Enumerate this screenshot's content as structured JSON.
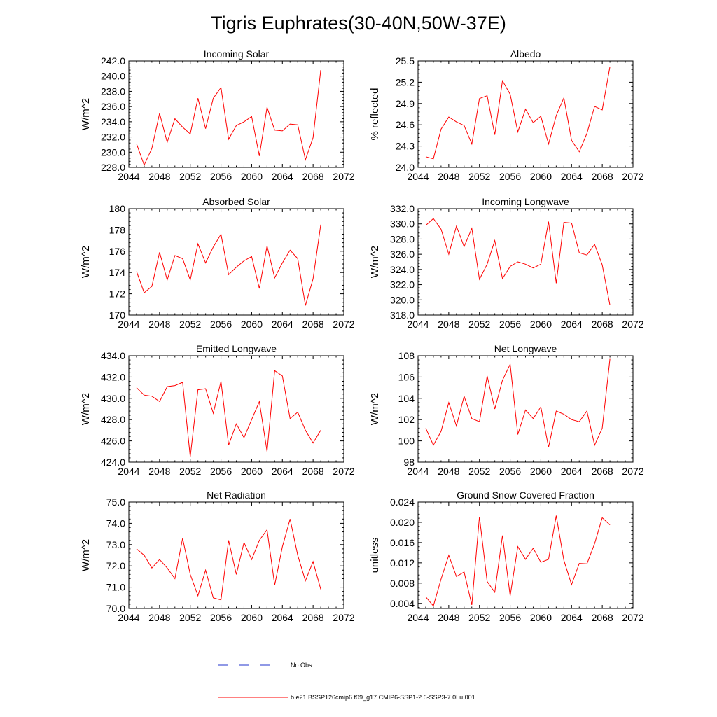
{
  "title": "Tigris Euphrates(30-40N,50W-37E)",
  "colors": {
    "series": "#ff0000",
    "obs": "#2233cc",
    "axis": "#000000"
  },
  "legend": {
    "obs_label": "No Obs",
    "model_label": "b.e21.BSSP126cmip6.f09_g17.CMIP6-SSP1-2.6-SSP3-7.0Lu.001"
  },
  "chart_data": [
    {
      "type": "line",
      "title": "Incoming Solar",
      "ylabel": "W/m^2",
      "xlim": [
        2044,
        2072
      ],
      "xticks": [
        2044,
        2048,
        2052,
        2056,
        2060,
        2064,
        2068,
        2072
      ],
      "ylim": [
        228,
        242
      ],
      "yticks": [
        "228.0",
        "230.0",
        "232.0",
        "234.0",
        "236.0",
        "238.0",
        "240.0",
        "242.0"
      ],
      "x": [
        2045,
        2046,
        2047,
        2048,
        2049,
        2050,
        2051,
        2052,
        2053,
        2054,
        2055,
        2056,
        2057,
        2058,
        2059,
        2060,
        2061,
        2062,
        2063,
        2064,
        2065,
        2066,
        2067,
        2068,
        2069
      ],
      "series": [
        {
          "values": [
            231.1,
            228.3,
            230.5,
            235.1,
            231.3,
            234.4,
            233.3,
            232.4,
            237.1,
            233.1,
            237.1,
            238.5,
            231.7,
            233.5,
            234.0,
            234.7,
            229.5,
            235.9,
            232.9,
            232.8,
            233.7,
            233.6,
            229.0,
            231.9,
            240.8
          ]
        }
      ]
    },
    {
      "type": "line",
      "title": "Albedo",
      "ylabel": "% reflected",
      "xlim": [
        2044,
        2072
      ],
      "xticks": [
        2044,
        2048,
        2052,
        2056,
        2060,
        2064,
        2068,
        2072
      ],
      "ylim": [
        24.0,
        25.5
      ],
      "yticks": [
        "24.0",
        "24.3",
        "24.6",
        "24.9",
        "25.2",
        "25.5"
      ],
      "x": [
        2045,
        2046,
        2047,
        2048,
        2049,
        2050,
        2051,
        2052,
        2053,
        2054,
        2055,
        2056,
        2057,
        2058,
        2059,
        2060,
        2061,
        2062,
        2063,
        2064,
        2065,
        2066,
        2067,
        2068,
        2069
      ],
      "series": [
        {
          "values": [
            24.15,
            24.12,
            24.54,
            24.71,
            24.64,
            24.59,
            24.33,
            24.97,
            25.01,
            24.46,
            25.22,
            25.03,
            24.5,
            24.82,
            24.63,
            24.72,
            24.33,
            24.73,
            24.98,
            24.38,
            24.22,
            24.48,
            24.86,
            24.81,
            25.42
          ]
        }
      ]
    },
    {
      "type": "line",
      "title": "Absorbed Solar",
      "ylabel": "W/m^2",
      "xlim": [
        2044,
        2072
      ],
      "xticks": [
        2044,
        2048,
        2052,
        2056,
        2060,
        2064,
        2068,
        2072
      ],
      "ylim": [
        170,
        180
      ],
      "yticks": [
        "170",
        "172",
        "174",
        "176",
        "178",
        "180"
      ],
      "x": [
        2045,
        2046,
        2047,
        2048,
        2049,
        2050,
        2051,
        2052,
        2053,
        2054,
        2055,
        2056,
        2057,
        2058,
        2059,
        2060,
        2061,
        2062,
        2063,
        2064,
        2065,
        2066,
        2067,
        2068,
        2069
      ],
      "series": [
        {
          "values": [
            174.1,
            172.1,
            172.7,
            175.9,
            173.3,
            175.6,
            175.3,
            173.3,
            176.7,
            174.9,
            176.4,
            177.6,
            173.8,
            174.5,
            175.1,
            175.5,
            172.5,
            176.5,
            173.5,
            174.9,
            176.1,
            175.3,
            170.9,
            173.4,
            178.5
          ]
        }
      ]
    },
    {
      "type": "line",
      "title": "Incoming Longwave",
      "ylabel": "W/m^2",
      "xlim": [
        2044,
        2072
      ],
      "xticks": [
        2044,
        2048,
        2052,
        2056,
        2060,
        2064,
        2068,
        2072
      ],
      "ylim": [
        318,
        332
      ],
      "yticks": [
        "318.0",
        "320.0",
        "322.0",
        "324.0",
        "326.0",
        "328.0",
        "330.0",
        "332.0"
      ],
      "x": [
        2045,
        2046,
        2047,
        2048,
        2049,
        2050,
        2051,
        2052,
        2053,
        2054,
        2055,
        2056,
        2057,
        2058,
        2059,
        2060,
        2061,
        2062,
        2063,
        2064,
        2065,
        2066,
        2067,
        2068,
        2069
      ],
      "series": [
        {
          "values": [
            329.8,
            330.7,
            329.3,
            326.0,
            329.7,
            327.0,
            329.4,
            322.7,
            324.7,
            327.8,
            322.8,
            324.4,
            325.0,
            324.7,
            324.2,
            324.7,
            330.3,
            322.2,
            330.2,
            330.1,
            326.2,
            325.9,
            327.3,
            324.6,
            319.3
          ]
        }
      ]
    },
    {
      "type": "line",
      "title": "Emitted Longwave",
      "ylabel": "W/m^2",
      "xlim": [
        2044,
        2072
      ],
      "xticks": [
        2044,
        2048,
        2052,
        2056,
        2060,
        2064,
        2068,
        2072
      ],
      "ylim": [
        424,
        434
      ],
      "yticks": [
        "424.0",
        "426.0",
        "428.0",
        "430.0",
        "432.0",
        "434.0"
      ],
      "x": [
        2045,
        2046,
        2047,
        2048,
        2049,
        2050,
        2051,
        2052,
        2053,
        2054,
        2055,
        2056,
        2057,
        2058,
        2059,
        2060,
        2061,
        2062,
        2063,
        2064,
        2065,
        2066,
        2067,
        2068,
        2069
      ],
      "series": [
        {
          "values": [
            431.0,
            430.3,
            430.2,
            429.7,
            431.1,
            431.2,
            431.5,
            424.5,
            430.8,
            430.9,
            428.6,
            431.6,
            425.6,
            427.6,
            426.3,
            428.0,
            429.7,
            425.0,
            432.6,
            432.1,
            428.1,
            428.7,
            427.0,
            425.8,
            427.0
          ]
        }
      ]
    },
    {
      "type": "line",
      "title": "Net Longwave",
      "ylabel": "W/m^2",
      "xlim": [
        2044,
        2072
      ],
      "xticks": [
        2044,
        2048,
        2052,
        2056,
        2060,
        2064,
        2068,
        2072
      ],
      "ylim": [
        98,
        108
      ],
      "yticks": [
        "98",
        "100",
        "102",
        "104",
        "106",
        "108"
      ],
      "x": [
        2045,
        2046,
        2047,
        2048,
        2049,
        2050,
        2051,
        2052,
        2053,
        2054,
        2055,
        2056,
        2057,
        2058,
        2059,
        2060,
        2061,
        2062,
        2063,
        2064,
        2065,
        2066,
        2067,
        2068,
        2069
      ],
      "series": [
        {
          "values": [
            101.2,
            99.6,
            100.9,
            103.6,
            101.4,
            104.2,
            102.1,
            101.8,
            106.1,
            103.0,
            105.7,
            107.2,
            100.6,
            102.9,
            102.1,
            103.2,
            99.4,
            102.8,
            102.5,
            102.0,
            101.8,
            102.8,
            99.6,
            101.2,
            107.7
          ]
        }
      ]
    },
    {
      "type": "line",
      "title": "Net Radiation",
      "ylabel": "W/m^2",
      "xlim": [
        2044,
        2072
      ],
      "xticks": [
        2044,
        2048,
        2052,
        2056,
        2060,
        2064,
        2068,
        2072
      ],
      "ylim": [
        70,
        75
      ],
      "yticks": [
        "70.0",
        "71.0",
        "72.0",
        "73.0",
        "74.0",
        "75.0"
      ],
      "x": [
        2045,
        2046,
        2047,
        2048,
        2049,
        2050,
        2051,
        2052,
        2053,
        2054,
        2055,
        2056,
        2057,
        2058,
        2059,
        2060,
        2061,
        2062,
        2063,
        2064,
        2065,
        2066,
        2067,
        2068,
        2069
      ],
      "series": [
        {
          "values": [
            72.8,
            72.5,
            71.9,
            72.3,
            71.9,
            71.4,
            73.3,
            71.6,
            70.6,
            71.8,
            70.5,
            70.4,
            73.2,
            71.6,
            73.1,
            72.3,
            73.2,
            73.7,
            71.1,
            72.9,
            74.2,
            72.5,
            71.3,
            72.2,
            70.9
          ]
        }
      ]
    },
    {
      "type": "line",
      "title": "Ground Snow Covered Fraction",
      "ylabel": "unitless",
      "xlim": [
        2044,
        2072
      ],
      "xticks": [
        2044,
        2048,
        2052,
        2056,
        2060,
        2064,
        2068,
        2072
      ],
      "ylim": [
        0.003,
        0.024
      ],
      "yticks": [
        "0.004",
        "0.008",
        "0.012",
        "0.016",
        "0.020",
        "0.024"
      ],
      "x": [
        2045,
        2046,
        2047,
        2048,
        2049,
        2050,
        2051,
        2052,
        2053,
        2054,
        2055,
        2056,
        2057,
        2058,
        2059,
        2060,
        2061,
        2062,
        2063,
        2064,
        2065,
        2066,
        2067,
        2068,
        2069
      ],
      "series": [
        {
          "values": [
            0.0053,
            0.0035,
            0.0088,
            0.0135,
            0.0093,
            0.0102,
            0.0037,
            0.0211,
            0.0083,
            0.0062,
            0.0174,
            0.0055,
            0.0152,
            0.0127,
            0.0149,
            0.0121,
            0.0127,
            0.0213,
            0.0125,
            0.0077,
            0.0119,
            0.0118,
            0.0158,
            0.0209,
            0.0195
          ]
        }
      ]
    }
  ]
}
